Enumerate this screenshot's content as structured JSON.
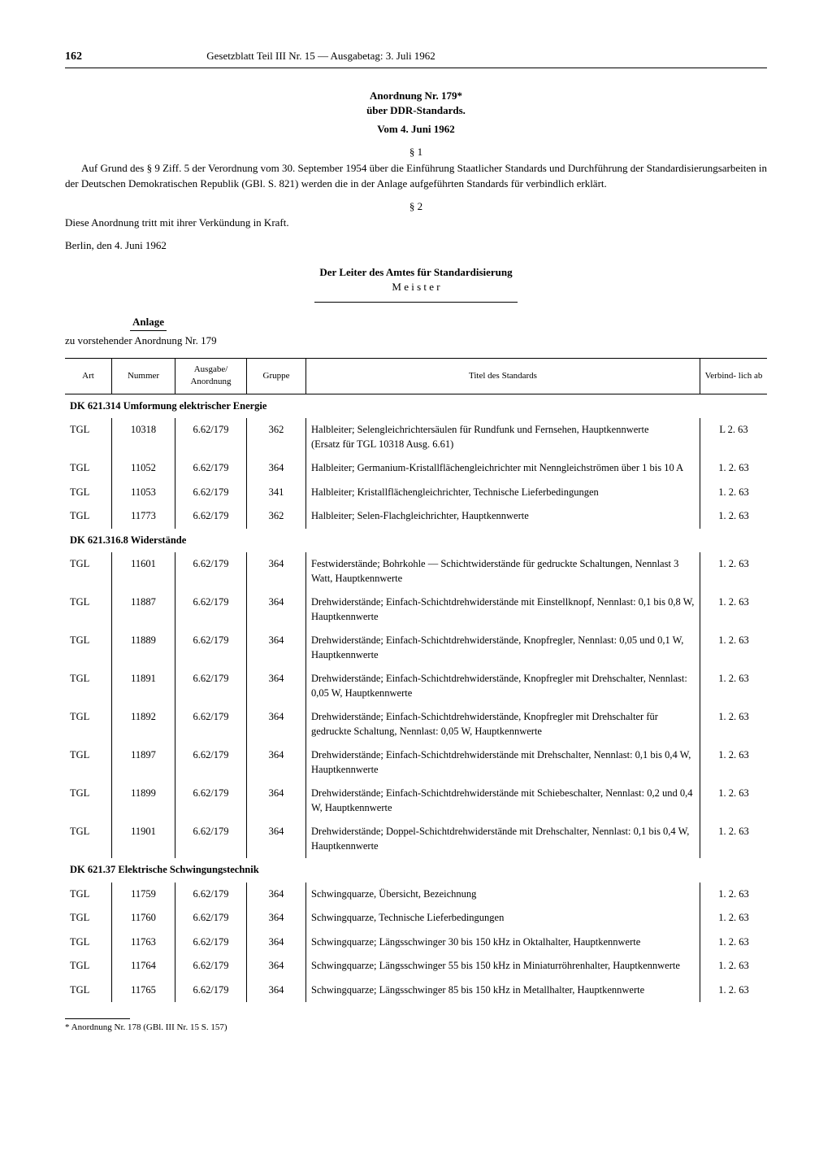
{
  "page_number": "162",
  "header_title": "Gesetzblatt Teil III Nr. 15 — Ausgabetag: 3. Juli 1962",
  "ordinance_title_1": "Anordnung Nr. 179*",
  "ordinance_title_2": "über DDR-Standards.",
  "ordinance_date": "Vom 4. Juni 1962",
  "para1_marker": "§ 1",
  "para1_text": "Auf Grund des § 9 Ziff. 5 der Verordnung vom 30. September 1954 über die Einführung Staatlicher Standards und Durchführung der Standardisierungsarbeiten in der Deutschen Demokratischen Republik (GBl. S. 821) werden die in der Anlage aufgeführten Standards für verbindlich erklärt.",
  "para2_marker": "§ 2",
  "para2_text": "Diese Anordnung tritt mit ihrer Verkündung in Kraft.",
  "place_date": "Berlin, den 4. Juni 1962",
  "signatory_title": "Der Leiter des Amtes für Standardisierung",
  "signatory_name": "M e i s t e r",
  "anlage_label": "Anlage",
  "anlage_sub": "zu vorstehender Anordnung Nr. 179",
  "table": {
    "columns": [
      "Art",
      "Nummer",
      "Ausgabe/ Anordnung",
      "Gruppe",
      "Titel des Standards",
      "Verbind- lich ab"
    ],
    "sections": [
      {
        "header": "DK 621.314 Umformung elektrischer Energie",
        "rows": [
          [
            "TGL",
            "10318",
            "6.62/179",
            "362",
            "Halbleiter; Selengleichrichtersäulen für Rundfunk und Fernsehen, Hauptkennwerte\n(Ersatz für TGL 10318 Ausg. 6.61)",
            "L 2. 63"
          ],
          [
            "TGL",
            "11052",
            "6.62/179",
            "364",
            "Halbleiter; Germanium-Kristallflächengleichrichter mit Nenngleichströmen über 1 bis 10 A",
            "1. 2. 63"
          ],
          [
            "TGL",
            "11053",
            "6.62/179",
            "341",
            "Halbleiter; Kristallflächengleichrichter, Technische Lieferbedingungen",
            "1. 2. 63"
          ],
          [
            "TGL",
            "11773",
            "6.62/179",
            "362",
            "Halbleiter; Selen-Flachgleichrichter, Hauptkennwerte",
            "1. 2. 63"
          ]
        ]
      },
      {
        "header": "DK 621.316.8 Widerstände",
        "rows": [
          [
            "TGL",
            "11601",
            "6.62/179",
            "364",
            "Festwiderstände; Bohrkohle — Schichtwiderstände für gedruckte Schaltungen, Nennlast 3 Watt, Hauptkennwerte",
            "1. 2. 63"
          ],
          [
            "TGL",
            "11887",
            "6.62/179",
            "364",
            "Drehwiderstände; Einfach-Schichtdrehwiderstände mit Einstellknopf, Nennlast: 0,1 bis 0,8 W, Hauptkennwerte",
            "1. 2. 63"
          ],
          [
            "TGL",
            "11889",
            "6.62/179",
            "364",
            "Drehwiderstände; Einfach-Schichtdrehwiderstände, Knopfregler, Nennlast: 0,05 und 0,1 W, Hauptkennwerte",
            "1. 2. 63"
          ],
          [
            "TGL",
            "11891",
            "6.62/179",
            "364",
            "Drehwiderstände; Einfach-Schichtdrehwiderstände, Knopfregler mit Drehschalter, Nennlast: 0,05 W, Hauptkennwerte",
            "1. 2. 63"
          ],
          [
            "TGL",
            "11892",
            "6.62/179",
            "364",
            "Drehwiderstände; Einfach-Schichtdrehwiderstände, Knopfregler mit Drehschalter für gedruckte Schaltung, Nennlast: 0,05 W, Hauptkennwerte",
            "1. 2. 63"
          ],
          [
            "TGL",
            "11897",
            "6.62/179",
            "364",
            "Drehwiderstände; Einfach-Schichtdrehwiderstände mit Drehschalter, Nennlast: 0,1 bis 0,4 W, Hauptkennwerte",
            "1. 2. 63"
          ],
          [
            "TGL",
            "11899",
            "6.62/179",
            "364",
            "Drehwiderstände; Einfach-Schichtdrehwiderstände mit Schiebeschalter, Nennlast: 0,2 und 0,4 W, Hauptkennwerte",
            "1. 2. 63"
          ],
          [
            "TGL",
            "11901",
            "6.62/179",
            "364",
            "Drehwiderstände; Doppel-Schichtdrehwiderstände mit Drehschalter, Nennlast: 0,1 bis 0,4 W, Hauptkennwerte",
            "1. 2. 63"
          ]
        ]
      },
      {
        "header": "DK 621.37 Elektrische Schwingungstechnik",
        "rows": [
          [
            "TGL",
            "11759",
            "6.62/179",
            "364",
            "Schwingquarze, Übersicht, Bezeichnung",
            "1. 2. 63"
          ],
          [
            "TGL",
            "11760",
            "6.62/179",
            "364",
            "Schwingquarze, Technische Lieferbedingungen",
            "1. 2. 63"
          ],
          [
            "TGL",
            "11763",
            "6.62/179",
            "364",
            "Schwingquarze; Längsschwinger 30 bis 150 kHz in Oktalhalter, Hauptkennwerte",
            "1. 2. 63"
          ],
          [
            "TGL",
            "11764",
            "6.62/179",
            "364",
            "Schwingquarze; Längsschwinger 55 bis 150 kHz in Miniaturröhrenhalter, Hauptkennwerte",
            "1. 2. 63"
          ],
          [
            "TGL",
            "11765",
            "6.62/179",
            "364",
            "Schwingquarze; Längsschwinger 85 bis 150 kHz in Metallhalter, Hauptkennwerte",
            "1. 2. 63"
          ]
        ]
      }
    ]
  },
  "footnote": "* Anordnung Nr. 178 (GBl. III Nr. 15 S. 157)"
}
